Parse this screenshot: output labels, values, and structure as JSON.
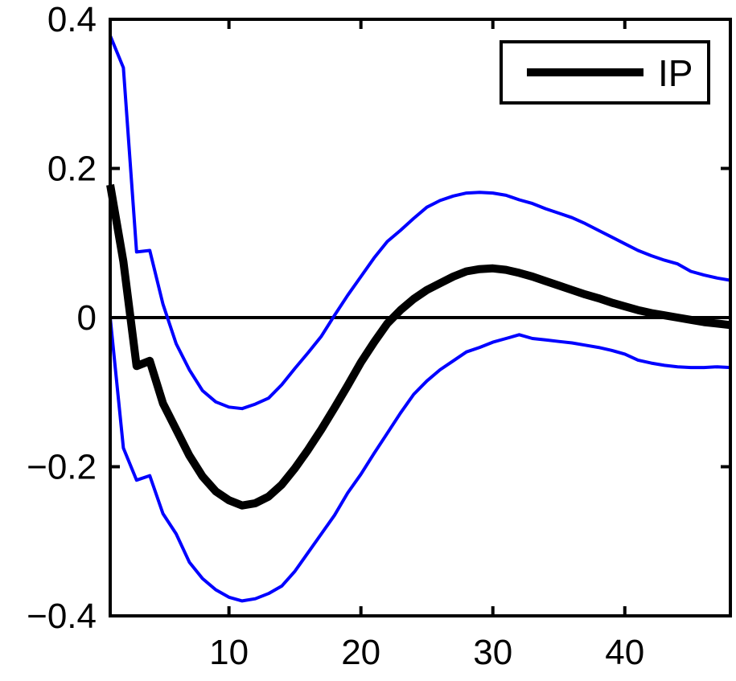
{
  "chart_data": {
    "type": "line",
    "xlim": [
      1,
      48
    ],
    "ylim": [
      -0.4,
      0.4
    ],
    "xticks": [
      10,
      20,
      30,
      40
    ],
    "xtick_labels": [
      "10",
      "20",
      "30",
      "40"
    ],
    "yticks": [
      0.4,
      0.2,
      0,
      -0.2,
      -0.4
    ],
    "ytick_labels": [
      "0.4",
      "0.2",
      "0",
      "−0.2",
      "−0.4"
    ],
    "grid": false,
    "legend": {
      "position": "top-right",
      "entries": [
        "IP"
      ]
    },
    "zero_line": true,
    "x": [
      1,
      2,
      3,
      4,
      5,
      6,
      7,
      8,
      9,
      10,
      11,
      12,
      13,
      14,
      15,
      16,
      17,
      18,
      19,
      20,
      21,
      22,
      23,
      24,
      25,
      26,
      27,
      28,
      29,
      30,
      31,
      32,
      33,
      34,
      35,
      36,
      37,
      38,
      39,
      40,
      41,
      42,
      43,
      44,
      45,
      46,
      47,
      48
    ],
    "series": [
      {
        "name": "IP",
        "color": "#000000",
        "values": [
          0.178,
          0.075,
          -0.065,
          -0.058,
          -0.115,
          -0.15,
          -0.185,
          -0.213,
          -0.233,
          -0.245,
          -0.252,
          -0.249,
          -0.24,
          -0.224,
          -0.202,
          -0.177,
          -0.15,
          -0.121,
          -0.091,
          -0.06,
          -0.033,
          -0.008,
          0.01,
          0.025,
          0.037,
          0.046,
          0.055,
          0.062,
          0.065,
          0.066,
          0.064,
          0.06,
          0.055,
          0.049,
          0.043,
          0.037,
          0.031,
          0.026,
          0.02,
          0.015,
          0.01,
          0.006,
          0.003,
          0.0,
          -0.003,
          -0.006,
          -0.008,
          -0.01
        ]
      },
      {
        "color": "#0000ff",
        "values": [
          0.378,
          0.335,
          0.088,
          0.09,
          0.018,
          -0.035,
          -0.07,
          -0.098,
          -0.113,
          -0.12,
          -0.122,
          -0.116,
          -0.108,
          -0.09,
          -0.068,
          -0.047,
          -0.025,
          0.003,
          0.03,
          0.055,
          0.08,
          0.102,
          0.117,
          0.133,
          0.148,
          0.157,
          0.163,
          0.167,
          0.168,
          0.167,
          0.164,
          0.158,
          0.153,
          0.146,
          0.14,
          0.134,
          0.126,
          0.117,
          0.108,
          0.099,
          0.09,
          0.083,
          0.077,
          0.072,
          0.062,
          0.057,
          0.053,
          0.05
        ]
      },
      {
        "color": "#0000ff",
        "values": [
          0.0,
          -0.175,
          -0.218,
          -0.212,
          -0.263,
          -0.29,
          -0.328,
          -0.35,
          -0.365,
          -0.375,
          -0.38,
          -0.377,
          -0.37,
          -0.36,
          -0.34,
          -0.315,
          -0.29,
          -0.265,
          -0.235,
          -0.21,
          -0.182,
          -0.155,
          -0.128,
          -0.103,
          -0.085,
          -0.07,
          -0.058,
          -0.046,
          -0.04,
          -0.033,
          -0.028,
          -0.023,
          -0.028,
          -0.03,
          -0.032,
          -0.034,
          -0.037,
          -0.04,
          -0.044,
          -0.049,
          -0.057,
          -0.061,
          -0.064,
          -0.066,
          -0.067,
          -0.067,
          -0.066,
          -0.067
        ]
      }
    ]
  }
}
